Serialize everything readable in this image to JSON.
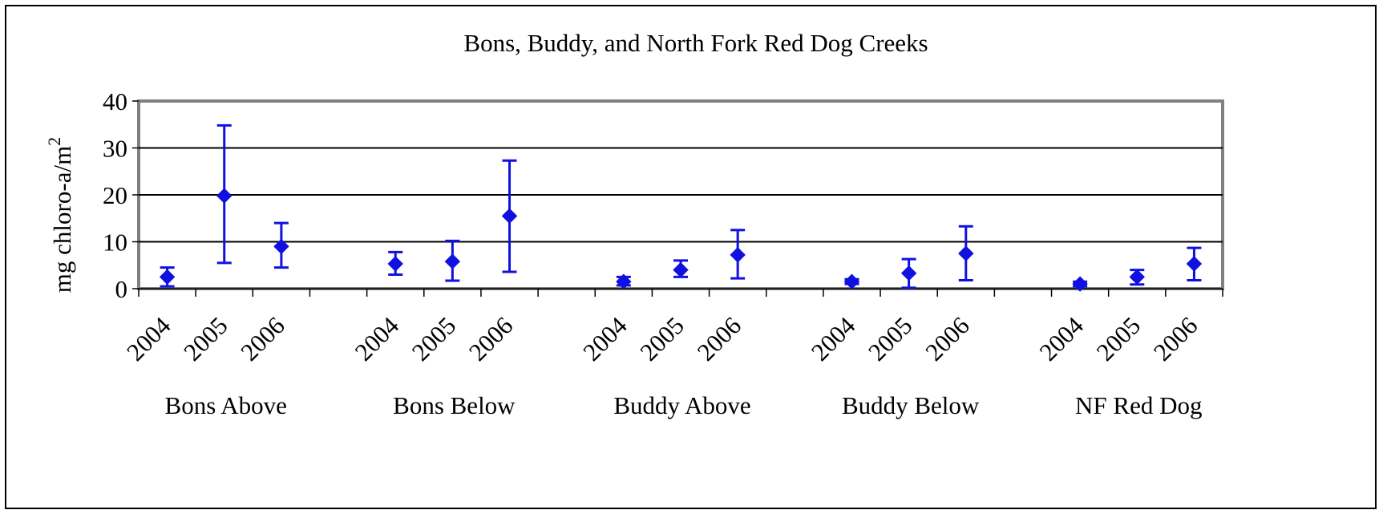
{
  "chart_data": {
    "type": "scatter",
    "title": "Bons, Buddy, and North Fork Red Dog Creeks",
    "ylabel": "mg chloro-a/m",
    "ylabel_superscript": "2",
    "ylim": [
      0,
      40
    ],
    "yticks": [
      "0",
      "10",
      "20",
      "30",
      "40"
    ],
    "grid": true,
    "marker": "diamond",
    "color": "#1010E0",
    "groups": [
      {
        "name": "Bons Above",
        "points": [
          {
            "x": "2004",
            "y": 2.5,
            "low": 0.5,
            "high": 4.5
          },
          {
            "x": "2005",
            "y": 19.8,
            "low": 5.5,
            "high": 34.8
          },
          {
            "x": "2006",
            "y": 9.0,
            "low": 4.5,
            "high": 14.0
          }
        ]
      },
      {
        "name": "Bons Below",
        "points": [
          {
            "x": "2004",
            "y": 5.3,
            "low": 3.0,
            "high": 7.8
          },
          {
            "x": "2005",
            "y": 5.8,
            "low": 1.7,
            "high": 10.2
          },
          {
            "x": "2006",
            "y": 15.5,
            "low": 3.6,
            "high": 27.3
          }
        ]
      },
      {
        "name": "Buddy Above",
        "points": [
          {
            "x": "2004",
            "y": 1.5,
            "low": 0.7,
            "high": 2.5
          },
          {
            "x": "2005",
            "y": 4.0,
            "low": 2.5,
            "high": 6.0
          },
          {
            "x": "2006",
            "y": 7.2,
            "low": 2.2,
            "high": 12.5
          }
        ]
      },
      {
        "name": "Buddy Below",
        "points": [
          {
            "x": "2004",
            "y": 1.5,
            "low": 1.0,
            "high": 2.0
          },
          {
            "x": "2005",
            "y": 3.3,
            "low": 0.2,
            "high": 6.3
          },
          {
            "x": "2006",
            "y": 7.5,
            "low": 1.8,
            "high": 13.3
          }
        ]
      },
      {
        "name": "NF Red Dog",
        "points": [
          {
            "x": "2004",
            "y": 1.0,
            "low": 0.5,
            "high": 1.5
          },
          {
            "x": "2005",
            "y": 2.5,
            "low": 0.9,
            "high": 4.0
          },
          {
            "x": "2006",
            "y": 5.3,
            "low": 1.8,
            "high": 8.7
          }
        ]
      }
    ]
  }
}
